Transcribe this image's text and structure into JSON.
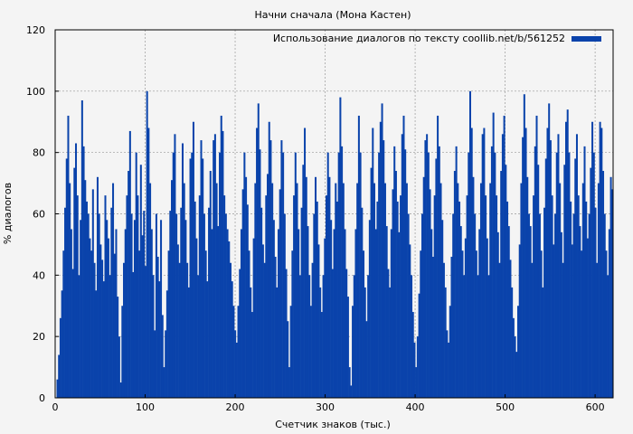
{
  "chart_data": {
    "type": "bar",
    "title": "Начни сначала (Мона Кастен)",
    "xlabel": "Счетчик знаков (тыс.)",
    "ylabel": "% диалогов",
    "xlim": [
      0,
      620
    ],
    "ylim": [
      0,
      120
    ],
    "xticks": [
      "0",
      "100",
      "200",
      "300",
      "400",
      "500",
      "600"
    ],
    "yticks": [
      "0",
      "20",
      "40",
      "60",
      "80",
      "100",
      "120"
    ],
    "grid": true,
    "legend_position": "top-right",
    "series": [
      {
        "name": "Использование диалогов по тексту coollib.net/b/561252",
        "color": "#0a43ab",
        "x_start": 1.5,
        "x_step": 0.5,
        "values": [
          6,
          14,
          26,
          35,
          48,
          62,
          78,
          92,
          70,
          55,
          42,
          75,
          83,
          66,
          40,
          58,
          97,
          82,
          71,
          64,
          60,
          52,
          48,
          68,
          44,
          35,
          72,
          60,
          50,
          45,
          38,
          66,
          58,
          52,
          40,
          62,
          70,
          47,
          55,
          33,
          20,
          5,
          30,
          44,
          55,
          66,
          74,
          87,
          60,
          41,
          58,
          80,
          66,
          48,
          76,
          53,
          61,
          43,
          100,
          88,
          70,
          55,
          40,
          22,
          60,
          46,
          38,
          58,
          27,
          10,
          22,
          35,
          48,
          61,
          71,
          80,
          86,
          60,
          50,
          44,
          62,
          83,
          70,
          58,
          44,
          36,
          78,
          80,
          90,
          64,
          52,
          40,
          66,
          84,
          78,
          60,
          48,
          38,
          62,
          74,
          55,
          84,
          86,
          70,
          56,
          80,
          92,
          87,
          66,
          60,
          55,
          51,
          44,
          38,
          30,
          22,
          18,
          30,
          42,
          55,
          68,
          80,
          72,
          63,
          48,
          36,
          28,
          52,
          70,
          88,
          96,
          81,
          62,
          50,
          44,
          66,
          73,
          90,
          84,
          70,
          58,
          46,
          36,
          55,
          68,
          84,
          80,
          60,
          42,
          25,
          10,
          30,
          48,
          66,
          80,
          70,
          55,
          40,
          62,
          76,
          88,
          72,
          56,
          40,
          30,
          44,
          60,
          72,
          64,
          50,
          36,
          28,
          40,
          52,
          66,
          80,
          72,
          58,
          42,
          55,
          70,
          64,
          80,
          98,
          82,
          70,
          55,
          42,
          33,
          10,
          4,
          30,
          40,
          55,
          70,
          92,
          80,
          62,
          48,
          36,
          25,
          40,
          58,
          75,
          88,
          70,
          55,
          64,
          80,
          90,
          96,
          84,
          70,
          56,
          42,
          36,
          55,
          68,
          82,
          74,
          64,
          54,
          66,
          86,
          92,
          81,
          70,
          60,
          50,
          40,
          28,
          18,
          10,
          20,
          34,
          48,
          60,
          72,
          84,
          86,
          80,
          68,
          55,
          46,
          66,
          78,
          92,
          82,
          70,
          58,
          44,
          36,
          22,
          18,
          30,
          46,
          60,
          74,
          82,
          70,
          64,
          56,
          48,
          40,
          52,
          66,
          80,
          100,
          88,
          72,
          60,
          48,
          40,
          55,
          70,
          86,
          88,
          66,
          52,
          40,
          70,
          82,
          93,
          80,
          66,
          54,
          44,
          74,
          86,
          92,
          76,
          64,
          56,
          45,
          36,
          26,
          20,
          15,
          30,
          50,
          70,
          85,
          99,
          88,
          72,
          60,
          56,
          44,
          66,
          82,
          92,
          76,
          60,
          48,
          36,
          62,
          78,
          88,
          96,
          84,
          66,
          50,
          60,
          80,
          86,
          70,
          54,
          44,
          76,
          90,
          94,
          80,
          64,
          50,
          60,
          78,
          86,
          66,
          56,
          48,
          70,
          82,
          64,
          52,
          60,
          75,
          90,
          80,
          62,
          44,
          70,
          90,
          88,
          74,
          60,
          48,
          40,
          55,
          72,
          68
        ]
      }
    ]
  }
}
